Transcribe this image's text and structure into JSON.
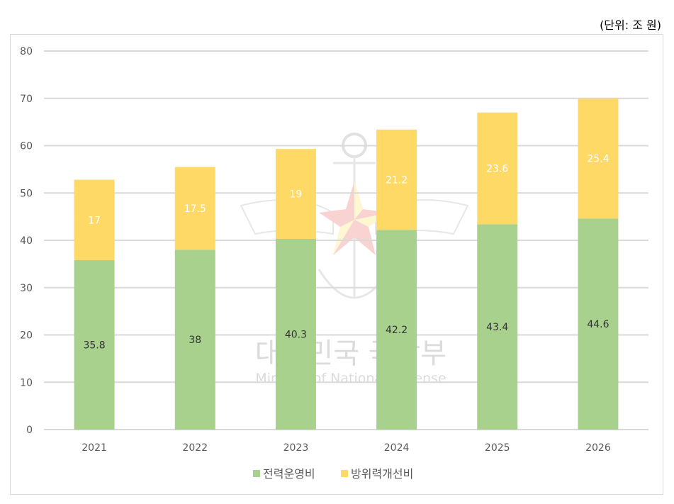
{
  "unit_label": "(단위: 조 원)",
  "watermark": {
    "title": "대한민국 국방부",
    "subtitle": "Ministry of National Defense"
  },
  "chart_data": {
    "type": "bar",
    "stacked": true,
    "categories": [
      "2021",
      "2022",
      "2023",
      "2024",
      "2025",
      "2026"
    ],
    "series": [
      {
        "name": "전력운영비",
        "values": [
          35.8,
          38,
          40.3,
          42.2,
          43.4,
          44.6
        ],
        "color": "#A9D18E",
        "label_color": "#333333"
      },
      {
        "name": "방위력개선비",
        "values": [
          17,
          17.5,
          19,
          21.2,
          23.6,
          25.4
        ],
        "color": "#FFD966",
        "label_color": "#ffffff"
      }
    ],
    "ylim": [
      0,
      80
    ],
    "yticks": [
      0,
      10,
      20,
      30,
      40,
      50,
      60,
      70,
      80
    ],
    "grid": true,
    "gridline_color": "#d9d9d9",
    "legend_position": "bottom"
  }
}
